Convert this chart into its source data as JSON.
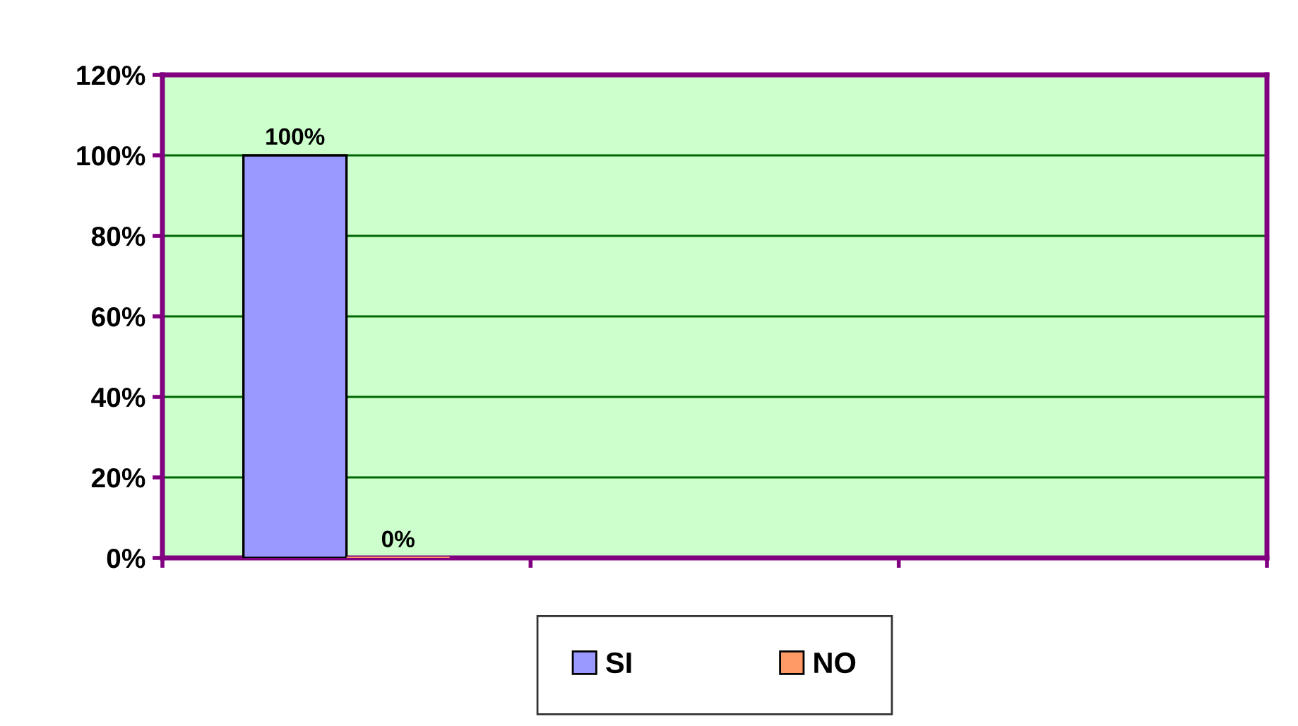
{
  "chart_data": {
    "type": "bar",
    "categories": [
      null,
      null,
      null
    ],
    "series": [
      {
        "name": "SI",
        "color": "#9999ff",
        "values": [
          100,
          null,
          null
        ],
        "value_labels": [
          "100%",
          null,
          null
        ]
      },
      {
        "name": "NO",
        "color": "#ff9966",
        "values": [
          0,
          null,
          null
        ],
        "value_labels": [
          "0%",
          null,
          null
        ]
      }
    ],
    "ylim": [
      0,
      120
    ],
    "yticks": [
      {
        "value": 0,
        "label": "0%"
      },
      {
        "value": 20,
        "label": "20%"
      },
      {
        "value": 40,
        "label": "40%"
      },
      {
        "value": 60,
        "label": "60%"
      },
      {
        "value": 80,
        "label": "80%"
      },
      {
        "value": 100,
        "label": "100%"
      },
      {
        "value": 120,
        "label": "120%"
      }
    ],
    "grid": "y",
    "legend": "bottom"
  }
}
